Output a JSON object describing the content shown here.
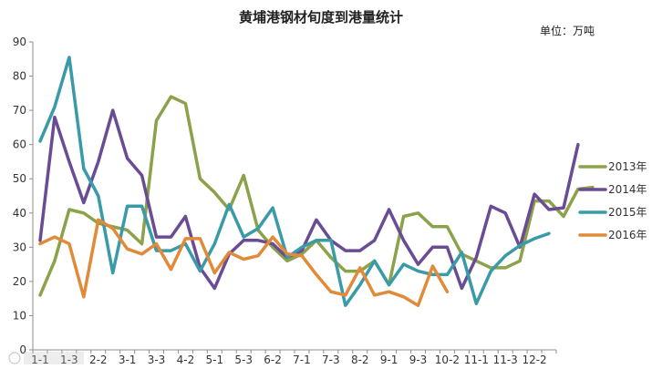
{
  "chart_data": {
    "type": "line",
    "title": "黄埔港钢材旬度到港量统计",
    "unit_label": "单位：万吨",
    "xlabel": "",
    "ylabel": "",
    "ylim": [
      0,
      90
    ],
    "yticks": [
      0,
      10,
      20,
      30,
      40,
      50,
      60,
      70,
      80,
      90
    ],
    "grid": false,
    "legend_position": "right",
    "x_tick_labels": [
      "1-1",
      "1-3",
      "2-2",
      "3-1",
      "3-3",
      "4-2",
      "5-1",
      "5-3",
      "6-2",
      "7-1",
      "7-3",
      "8-2",
      "9-1",
      "9-3",
      "10-2",
      "11-1",
      "11-3",
      "12-2"
    ],
    "x_tick_every": 2,
    "series": [
      {
        "name": "2013年",
        "color": "#8BA24A",
        "values": [
          16,
          26,
          41,
          40,
          37,
          36,
          35,
          31,
          67,
          74,
          72,
          50,
          46,
          41,
          51,
          35,
          30,
          26,
          28,
          32,
          27,
          23,
          23,
          26,
          19,
          39,
          40,
          36,
          36,
          28,
          26,
          24,
          24,
          26,
          43.5,
          43.5,
          39,
          47,
          47.5
        ]
      },
      {
        "name": "2014年",
        "color": "#6A4C94",
        "values": [
          32,
          68,
          55,
          43,
          55,
          70,
          56,
          51,
          33,
          33,
          39,
          24,
          18,
          28,
          32,
          32,
          31,
          27,
          29,
          38,
          32,
          29,
          29,
          32,
          41,
          32,
          25,
          30,
          30,
          18,
          27,
          42,
          40,
          30,
          45.5,
          41,
          41.5,
          60
        ]
      },
      {
        "name": "2015年",
        "color": "#3A9BA8",
        "values": [
          61,
          71,
          85.5,
          53,
          45,
          22.5,
          42,
          42,
          29,
          29,
          31,
          23,
          31,
          42.5,
          33,
          35.5,
          41.5,
          27,
          30,
          32,
          32,
          13,
          19,
          26,
          19,
          25,
          23,
          22,
          22,
          28.5,
          13.5,
          23,
          27.5,
          30.5,
          32.5,
          34
        ]
      },
      {
        "name": "2016年",
        "color": "#E08A3A",
        "values": [
          31,
          33,
          31,
          15.5,
          38,
          35.5,
          29.5,
          28,
          31,
          23.5,
          32.5,
          32.5,
          22.5,
          28.5,
          26.5,
          27.5,
          33,
          28,
          27.5,
          22,
          17,
          16,
          24,
          16,
          17,
          15.5,
          13,
          24.5,
          17
        ]
      }
    ]
  }
}
